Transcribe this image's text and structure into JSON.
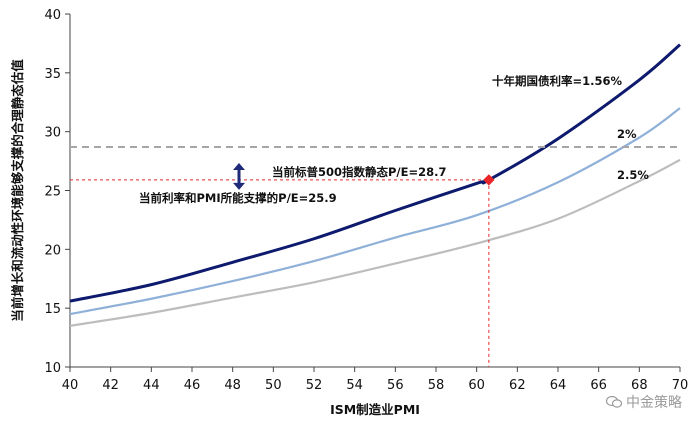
{
  "chart_data": {
    "type": "line",
    "xlabel": "ISM制造业PMI",
    "ylabel": "当前增长和流动性环境能够支撑的合理静态估值",
    "xlim": [
      40,
      70
    ],
    "ylim": [
      10,
      40
    ],
    "xticks": [
      40,
      42,
      44,
      46,
      48,
      50,
      52,
      54,
      56,
      58,
      60,
      62,
      64,
      66,
      68,
      70
    ],
    "yticks": [
      10,
      15,
      20,
      25,
      30,
      35,
      40
    ],
    "series": [
      {
        "name": "十年期国债利率=1.56%",
        "color": "#0d1a6e",
        "x": [
          40,
          44,
          48,
          52,
          56,
          60,
          60.6,
          64,
          68,
          70
        ],
        "y": [
          15.6,
          17.0,
          18.9,
          20.9,
          23.3,
          25.6,
          25.9,
          29.4,
          34.4,
          37.4
        ]
      },
      {
        "name": "2%",
        "color": "#8fb0d8",
        "x": [
          40,
          44,
          48,
          52,
          56,
          60,
          64,
          68,
          70
        ],
        "y": [
          14.5,
          15.8,
          17.3,
          19.0,
          21.0,
          22.9,
          25.7,
          29.5,
          32.0
        ]
      },
      {
        "name": "2.5%",
        "color": "#bdbdbd",
        "x": [
          40,
          44,
          48,
          52,
          56,
          60,
          64,
          68,
          70
        ],
        "y": [
          13.5,
          14.6,
          15.9,
          17.2,
          18.8,
          20.5,
          22.6,
          25.8,
          27.6
        ]
      }
    ],
    "reference_line": {
      "y": 28.7,
      "label": "当前标普500指数静态P/E=28.7",
      "color": "#a6a6a6"
    },
    "marker": {
      "x": 60.6,
      "y": 25.9,
      "label": "当前利率和PMI所能支撑的P/E=25.9",
      "color": "#e8262a"
    }
  },
  "watermark": {
    "text": "中金策略"
  }
}
